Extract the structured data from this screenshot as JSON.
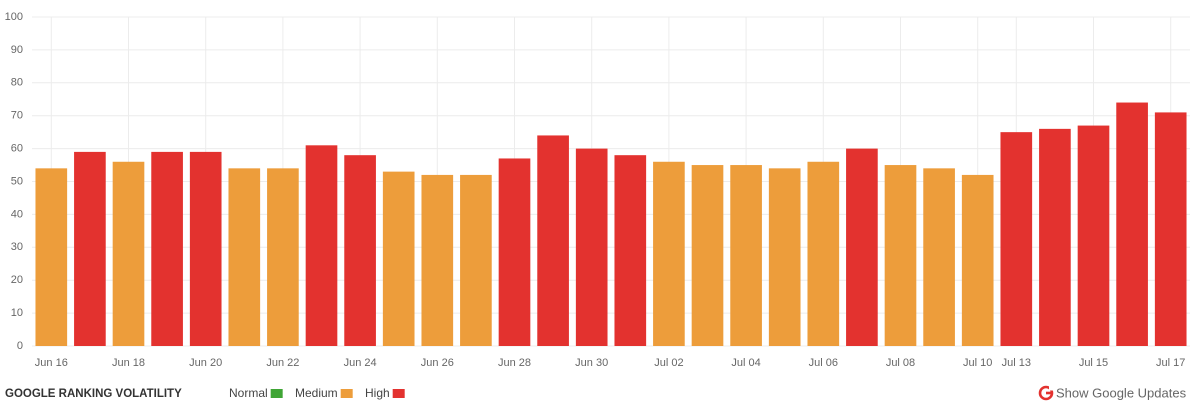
{
  "chart_data": {
    "type": "bar",
    "title": "GOOGLE RANKING VOLATILITY",
    "categories": [
      "Jun 16",
      null,
      "Jun 18",
      null,
      "Jun 20",
      null,
      "Jun 22",
      null,
      "Jun 24",
      null,
      "Jun 26",
      null,
      "Jun 28",
      null,
      "Jun 30",
      null,
      "Jul 02",
      null,
      "Jul 04",
      null,
      "Jul 06",
      null,
      "Jul 08",
      null,
      "Jul 10",
      "Jul 13",
      null,
      "Jul 15",
      null,
      "Jul 17"
    ],
    "values": [
      54,
      59,
      56,
      59,
      59,
      54,
      54,
      61,
      58,
      53,
      52,
      52,
      57,
      64,
      60,
      58,
      56,
      55,
      55,
      54,
      56,
      60,
      55,
      54,
      52,
      65,
      66,
      67,
      74,
      71
    ],
    "colors": [
      "#ed9d3b",
      "#e3322f",
      "#ed9d3b",
      "#e3322f",
      "#e3322f",
      "#ed9d3b",
      "#ed9d3b",
      "#e3322f",
      "#e3322f",
      "#ed9d3b",
      "#ed9d3b",
      "#ed9d3b",
      "#e3322f",
      "#e3322f",
      "#e3322f",
      "#e3322f",
      "#ed9d3b",
      "#ed9d3b",
      "#ed9d3b",
      "#ed9d3b",
      "#ed9d3b",
      "#e3322f",
      "#ed9d3b",
      "#ed9d3b",
      "#ed9d3b",
      "#e3322f",
      "#e3322f",
      "#e3322f",
      "#e3322f",
      "#e3322f"
    ],
    "legend": [
      {
        "name": "Normal",
        "color": "#3fa535"
      },
      {
        "name": "Medium",
        "color": "#ed9d3b"
      },
      {
        "name": "High",
        "color": "#e3322f"
      }
    ],
    "ylim": [
      0,
      100
    ],
    "yticks": [
      0,
      10,
      20,
      30,
      40,
      50,
      60,
      70,
      80,
      90,
      100
    ],
    "grid": true,
    "link": "Show Google Updates"
  }
}
